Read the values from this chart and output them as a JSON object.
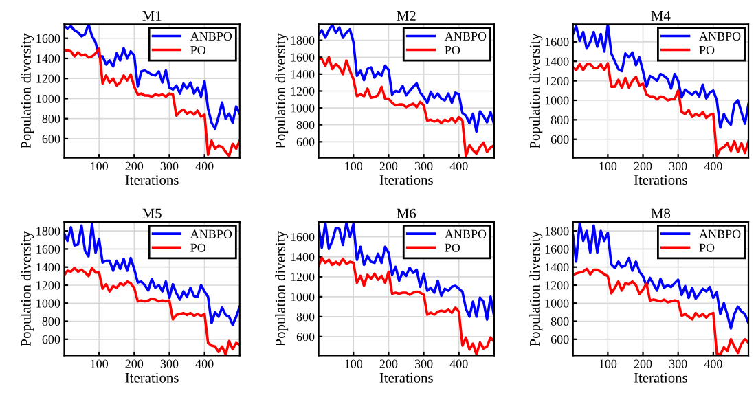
{
  "chart_data": [
    {
      "type": "line",
      "title": "M1",
      "xlabel": "Iterations",
      "ylabel": "Population diversity",
      "x": [
        1,
        10,
        20,
        30,
        40,
        50,
        60,
        70,
        80,
        90,
        100,
        110,
        120,
        130,
        140,
        150,
        160,
        170,
        180,
        190,
        200,
        210,
        220,
        230,
        240,
        250,
        260,
        270,
        280,
        290,
        300,
        310,
        320,
        330,
        340,
        350,
        360,
        370,
        380,
        390,
        400,
        410,
        420,
        430,
        440,
        450,
        460,
        470,
        480,
        490,
        500
      ],
      "xlim": [
        1,
        500
      ],
      "xticks": [
        100,
        200,
        300,
        400
      ],
      "ylim": [
        410,
        1740
      ],
      "yticks": [
        600,
        800,
        1000,
        1200,
        1400,
        1600
      ],
      "grid": true,
      "legend": "top right",
      "series": [
        {
          "name": "ANBPO",
          "color": "#0000ff",
          "values": [
            1720,
            1700,
            1720,
            1680,
            1660,
            1620,
            1640,
            1740,
            1620,
            1560,
            1420,
            1420,
            1340,
            1380,
            1320,
            1450,
            1380,
            1500,
            1400,
            1470,
            1430,
            1120,
            1270,
            1280,
            1260,
            1240,
            1230,
            1270,
            1160,
            1280,
            1110,
            1090,
            1130,
            1050,
            1150,
            1100,
            1160,
            1050,
            1110,
            1020,
            1170,
            900,
            760,
            700,
            820,
            960,
            800,
            850,
            760,
            920,
            850
          ]
        },
        {
          "name": "PO",
          "color": "#ff0000",
          "values": [
            1480,
            1480,
            1470,
            1420,
            1460,
            1430,
            1440,
            1410,
            1420,
            1450,
            1500,
            1150,
            1230,
            1160,
            1200,
            1130,
            1160,
            1230,
            1180,
            1240,
            1120,
            1040,
            1050,
            1030,
            1030,
            1020,
            1040,
            1030,
            1040,
            1020,
            1050,
            1040,
            830,
            870,
            890,
            850,
            870,
            840,
            880,
            820,
            840,
            440,
            580,
            500,
            530,
            520,
            470,
            430,
            550,
            500,
            580
          ]
        }
      ]
    },
    {
      "type": "line",
      "title": "M2",
      "xlabel": "Iterations",
      "ylabel": "Population diversity",
      "x": [
        1,
        10,
        20,
        30,
        40,
        50,
        60,
        70,
        80,
        90,
        100,
        110,
        120,
        130,
        140,
        150,
        160,
        170,
        180,
        190,
        200,
        210,
        220,
        230,
        240,
        250,
        260,
        270,
        280,
        290,
        300,
        310,
        320,
        330,
        340,
        350,
        360,
        370,
        380,
        390,
        400,
        410,
        420,
        430,
        440,
        450,
        460,
        470,
        480,
        490,
        500
      ],
      "xlim": [
        1,
        500
      ],
      "xticks": [
        100,
        200,
        300,
        400
      ],
      "ylim": [
        410,
        1990
      ],
      "yticks": [
        600,
        800,
        1000,
        1200,
        1400,
        1600,
        1800
      ],
      "grid": true,
      "legend": "top right",
      "series": [
        {
          "name": "ANBPO",
          "color": "#0000ff",
          "values": [
            1870,
            1920,
            1830,
            1920,
            1980,
            1890,
            1950,
            1830,
            1890,
            1930,
            1780,
            1380,
            1440,
            1330,
            1460,
            1480,
            1360,
            1420,
            1380,
            1500,
            1450,
            1160,
            1200,
            1190,
            1260,
            1150,
            1200,
            1250,
            1290,
            1180,
            1130,
            1060,
            1190,
            1120,
            1170,
            1110,
            1090,
            1170,
            1060,
            1180,
            1160,
            940,
            910,
            820,
            930,
            720,
            960,
            900,
            830,
            950,
            810
          ]
        },
        {
          "name": "PO",
          "color": "#ff0000",
          "values": [
            1580,
            1580,
            1500,
            1600,
            1460,
            1520,
            1480,
            1400,
            1560,
            1440,
            1340,
            1140,
            1160,
            1140,
            1230,
            1120,
            1130,
            1150,
            1250,
            1110,
            1110,
            1060,
            1030,
            1040,
            1040,
            1010,
            1030,
            1050,
            1010,
            1070,
            1030,
            850,
            860,
            840,
            860,
            820,
            860,
            840,
            880,
            830,
            890,
            850,
            430,
            560,
            500,
            460,
            540,
            590,
            480,
            530,
            560
          ]
        }
      ]
    },
    {
      "type": "line",
      "title": "M4",
      "xlabel": "Iterations",
      "ylabel": "Population diversity",
      "x": [
        1,
        10,
        20,
        30,
        40,
        50,
        60,
        70,
        80,
        90,
        100,
        110,
        120,
        130,
        140,
        150,
        160,
        170,
        180,
        190,
        200,
        210,
        220,
        230,
        240,
        250,
        260,
        270,
        280,
        290,
        300,
        310,
        320,
        330,
        340,
        350,
        360,
        370,
        380,
        390,
        400,
        410,
        420,
        430,
        440,
        450,
        460,
        470,
        480,
        490,
        500
      ],
      "xlim": [
        1,
        500
      ],
      "xticks": [
        100,
        200,
        300,
        400
      ],
      "ylim": [
        410,
        1780
      ],
      "yticks": [
        600,
        800,
        1000,
        1200,
        1400,
        1600
      ],
      "grid": true,
      "legend": "top right",
      "series": [
        {
          "name": "ANBPO",
          "color": "#0000ff",
          "values": [
            1680,
            1760,
            1610,
            1700,
            1530,
            1600,
            1700,
            1550,
            1680,
            1500,
            1780,
            1480,
            1400,
            1320,
            1300,
            1480,
            1440,
            1490,
            1360,
            1440,
            1300,
            1140,
            1250,
            1230,
            1200,
            1270,
            1250,
            1220,
            1120,
            1270,
            1200,
            1030,
            1110,
            1080,
            1060,
            1090,
            1040,
            1160,
            1020,
            1080,
            1100,
            1000,
            720,
            860,
            790,
            750,
            960,
            1000,
            880,
            760,
            960
          ]
        },
        {
          "name": "PO",
          "color": "#ff0000",
          "values": [
            1340,
            1310,
            1370,
            1310,
            1370,
            1370,
            1330,
            1330,
            1370,
            1310,
            1380,
            1140,
            1140,
            1210,
            1130,
            1230,
            1130,
            1200,
            1240,
            1150,
            1170,
            1060,
            1040,
            1040,
            1010,
            1040,
            1030,
            1000,
            1010,
            1010,
            1100,
            880,
            860,
            900,
            830,
            860,
            840,
            880,
            820,
            850,
            860,
            430,
            500,
            520,
            560,
            480,
            580,
            470,
            560,
            460,
            580
          ]
        }
      ]
    },
    {
      "type": "line",
      "title": "M5",
      "xlabel": "Iterations",
      "ylabel": "Population diversity",
      "x": [
        1,
        10,
        20,
        30,
        40,
        50,
        60,
        70,
        80,
        90,
        100,
        110,
        120,
        130,
        140,
        150,
        160,
        170,
        180,
        190,
        200,
        210,
        220,
        230,
        240,
        250,
        260,
        270,
        280,
        290,
        300,
        310,
        320,
        330,
        340,
        350,
        360,
        370,
        380,
        390,
        400,
        410,
        420,
        430,
        440,
        450,
        460,
        470,
        480,
        490,
        500
      ],
      "xlim": [
        1,
        500
      ],
      "xticks": [
        100,
        200,
        300,
        400
      ],
      "ylim": [
        420,
        1900
      ],
      "yticks": [
        600,
        800,
        1000,
        1200,
        1400,
        1600,
        1800
      ],
      "grid": true,
      "legend": "top right",
      "series": [
        {
          "name": "ANBPO",
          "color": "#0000ff",
          "values": [
            1770,
            1690,
            1840,
            1640,
            1650,
            1860,
            1580,
            1520,
            1880,
            1560,
            1710,
            1450,
            1470,
            1470,
            1360,
            1470,
            1380,
            1490,
            1360,
            1500,
            1380,
            1230,
            1240,
            1200,
            1140,
            1270,
            1170,
            1200,
            1130,
            1240,
            1060,
            1210,
            1110,
            1040,
            1130,
            1070,
            1170,
            1080,
            1070,
            1200,
            1130,
            1070,
            780,
            900,
            850,
            950,
            870,
            850,
            760,
            850,
            960
          ]
        },
        {
          "name": "PO",
          "color": "#ff0000",
          "values": [
            1310,
            1360,
            1350,
            1390,
            1350,
            1370,
            1340,
            1300,
            1390,
            1340,
            1340,
            1160,
            1210,
            1130,
            1190,
            1170,
            1220,
            1200,
            1240,
            1220,
            1170,
            1020,
            1030,
            1020,
            1030,
            1050,
            1040,
            1020,
            1030,
            1020,
            1030,
            820,
            870,
            880,
            890,
            870,
            890,
            860,
            880,
            860,
            880,
            560,
            530,
            520,
            460,
            520,
            430,
            580,
            490,
            560,
            540
          ]
        }
      ]
    },
    {
      "type": "line",
      "title": "M6",
      "xlabel": "Iterations",
      "ylabel": "Population diversity",
      "x": [
        1,
        10,
        20,
        30,
        40,
        50,
        60,
        70,
        80,
        90,
        100,
        110,
        120,
        130,
        140,
        150,
        160,
        170,
        180,
        190,
        200,
        210,
        220,
        230,
        240,
        250,
        260,
        270,
        280,
        290,
        300,
        310,
        320,
        330,
        340,
        350,
        360,
        370,
        380,
        390,
        400,
        410,
        420,
        430,
        440,
        450,
        460,
        470,
        480,
        490,
        500
      ],
      "xlim": [
        1,
        500
      ],
      "xticks": [
        100,
        200,
        300,
        400
      ],
      "ylim": [
        410,
        1750
      ],
      "yticks": [
        600,
        800,
        1000,
        1200,
        1400,
        1600
      ],
      "grid": true,
      "legend": "top right",
      "series": [
        {
          "name": "ANBPO",
          "color": "#0000ff",
          "values": [
            1700,
            1490,
            1740,
            1480,
            1560,
            1690,
            1680,
            1520,
            1740,
            1600,
            1730,
            1370,
            1500,
            1320,
            1410,
            1350,
            1340,
            1430,
            1340,
            1500,
            1440,
            1220,
            1300,
            1160,
            1250,
            1210,
            1290,
            1240,
            1270,
            1100,
            1230,
            1060,
            1090,
            1040,
            1160,
            1010,
            1080,
            1060,
            1100,
            1110,
            1080,
            1050,
            880,
            800,
            950,
            800,
            990,
            950,
            770,
            1000,
            810
          ]
        },
        {
          "name": "PO",
          "color": "#ff0000",
          "values": [
            1310,
            1390,
            1340,
            1370,
            1320,
            1350,
            1320,
            1380,
            1330,
            1350,
            1340,
            1140,
            1210,
            1110,
            1220,
            1180,
            1230,
            1170,
            1210,
            1140,
            1250,
            1030,
            1040,
            1030,
            1040,
            1040,
            1020,
            1040,
            1050,
            1040,
            1020,
            820,
            840,
            820,
            850,
            860,
            850,
            870,
            840,
            890,
            850,
            510,
            590,
            470,
            530,
            420,
            540,
            480,
            500,
            590,
            550
          ]
        }
      ]
    },
    {
      "type": "line",
      "title": "M8",
      "xlabel": "Iterations",
      "ylabel": "Population diversity",
      "x": [
        1,
        10,
        20,
        30,
        40,
        50,
        60,
        70,
        80,
        90,
        100,
        110,
        120,
        130,
        140,
        150,
        160,
        170,
        180,
        190,
        200,
        210,
        220,
        230,
        240,
        250,
        260,
        270,
        280,
        290,
        300,
        310,
        320,
        330,
        340,
        350,
        360,
        370,
        380,
        390,
        400,
        410,
        420,
        430,
        440,
        450,
        460,
        470,
        480,
        490,
        500
      ],
      "xlim": [
        1,
        500
      ],
      "xticks": [
        100,
        200,
        300,
        400
      ],
      "ylim": [
        420,
        1900
      ],
      "yticks": [
        600,
        800,
        1000,
        1200,
        1400,
        1600,
        1800
      ],
      "grid": true,
      "legend": "top right",
      "series": [
        {
          "name": "ANBPO",
          "color": "#0000ff",
          "values": [
            1750,
            1460,
            1890,
            1690,
            1800,
            1560,
            1860,
            1560,
            1800,
            1690,
            1780,
            1430,
            1390,
            1460,
            1400,
            1420,
            1500,
            1360,
            1460,
            1350,
            1300,
            1190,
            1280,
            1210,
            1140,
            1270,
            1170,
            1200,
            1180,
            1220,
            1260,
            1090,
            1190,
            1060,
            1170,
            1050,
            1100,
            1160,
            1130,
            1180,
            1060,
            1120,
            880,
            1000,
            870,
            720,
            880,
            960,
            910,
            880,
            780
          ]
        },
        {
          "name": "PO",
          "color": "#ff0000",
          "values": [
            1310,
            1330,
            1340,
            1350,
            1380,
            1320,
            1370,
            1370,
            1350,
            1320,
            1300,
            1110,
            1170,
            1240,
            1140,
            1220,
            1210,
            1240,
            1200,
            1100,
            1150,
            1220,
            1030,
            1040,
            1030,
            1020,
            1040,
            1010,
            1020,
            1030,
            1020,
            860,
            880,
            850,
            820,
            890,
            850,
            880,
            840,
            880,
            890,
            440,
            430,
            510,
            470,
            600,
            520,
            450,
            550,
            600,
            560
          ]
        }
      ]
    }
  ]
}
